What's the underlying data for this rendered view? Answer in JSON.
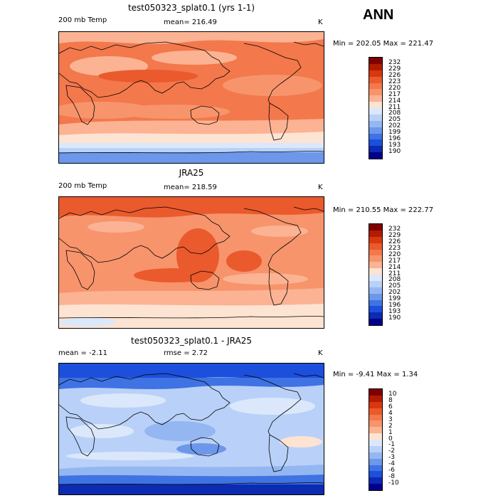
{
  "season": "ANN",
  "panels": [
    {
      "id": "model",
      "title": "test050323_splat0.1 (yrs 1-1)",
      "left_label": "200 mb Temp",
      "center_label": "mean= 216.49",
      "units": "K",
      "minmax": "Min = 202.05 Max = 221.47",
      "levels": [
        "232",
        "229",
        "226",
        "223",
        "220",
        "217",
        "214",
        "211",
        "208",
        "205",
        "202",
        "199",
        "196",
        "193",
        "190"
      ],
      "colors": [
        "#7f0000",
        "#b01c00",
        "#d8370f",
        "#ea5a2c",
        "#f3784c",
        "#f7946c",
        "#fbb393",
        "#fde3d2",
        "#dbe8fb",
        "#b9d1f8",
        "#94b7f2",
        "#6c97ea",
        "#3f72e3",
        "#1c4fdb",
        "#0c2bb2",
        "#00008b"
      ]
    },
    {
      "id": "obs",
      "title": "JRA25",
      "left_label": "200 mb Temp",
      "center_label": "mean= 218.59",
      "units": "K",
      "minmax": "Min = 210.55 Max = 222.77",
      "levels": [
        "232",
        "229",
        "226",
        "223",
        "220",
        "217",
        "214",
        "211",
        "208",
        "205",
        "202",
        "199",
        "196",
        "193",
        "190"
      ],
      "colors": [
        "#7f0000",
        "#b01c00",
        "#d8370f",
        "#ea5a2c",
        "#f3784c",
        "#f7946c",
        "#fbb393",
        "#fde3d2",
        "#dbe8fb",
        "#b9d1f8",
        "#94b7f2",
        "#6c97ea",
        "#3f72e3",
        "#1c4fdb",
        "#0c2bb2",
        "#00008b"
      ]
    },
    {
      "id": "diff",
      "title": "test050323_splat0.1 - JRA25",
      "left_label": "mean =  -2.11",
      "center_label": "rmse =   2.72",
      "units": "K",
      "minmax": "Min =  -9.41 Max =   1.34",
      "levels": [
        "10",
        "8",
        "6",
        "4",
        "3",
        "2",
        "1",
        "0",
        "-1",
        "-2",
        "-3",
        "-4",
        "-6",
        "-8",
        "-10"
      ],
      "colors": [
        "#7f0000",
        "#b01c00",
        "#d8370f",
        "#ea5a2c",
        "#f3784c",
        "#f7946c",
        "#fbb393",
        "#fde3d2",
        "#dbe8fb",
        "#b9d1f8",
        "#94b7f2",
        "#6c97ea",
        "#3f72e3",
        "#1c4fdb",
        "#0c2bb2",
        "#00008b"
      ]
    }
  ]
}
